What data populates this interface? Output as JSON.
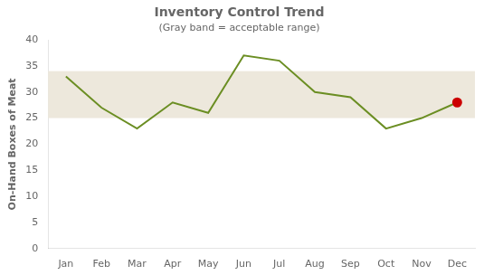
{
  "chart_data": {
    "type": "line",
    "title": "Inventory Control Trend",
    "subtitle": "(Gray band = acceptable range)",
    "ylabel": "On-Hand Boxes of Meat",
    "categories": [
      "Jan",
      "Feb",
      "Mar",
      "Apr",
      "May",
      "Jun",
      "Jul",
      "Aug",
      "Sep",
      "Oct",
      "Nov",
      "Dec"
    ],
    "values": [
      33,
      27,
      23,
      28,
      26,
      37,
      36,
      30,
      29,
      23,
      25,
      28
    ],
    "color": "#6B8E23",
    "band": {
      "lower": 25,
      "upper": 34,
      "color": "#EDE8DC"
    },
    "highlight": {
      "category": "Dec",
      "color": "#CC0000"
    },
    "ylim": [
      0,
      40
    ],
    "yticks": [
      0,
      5,
      10,
      15,
      20,
      25,
      30,
      35,
      40
    ],
    "grid": false
  }
}
